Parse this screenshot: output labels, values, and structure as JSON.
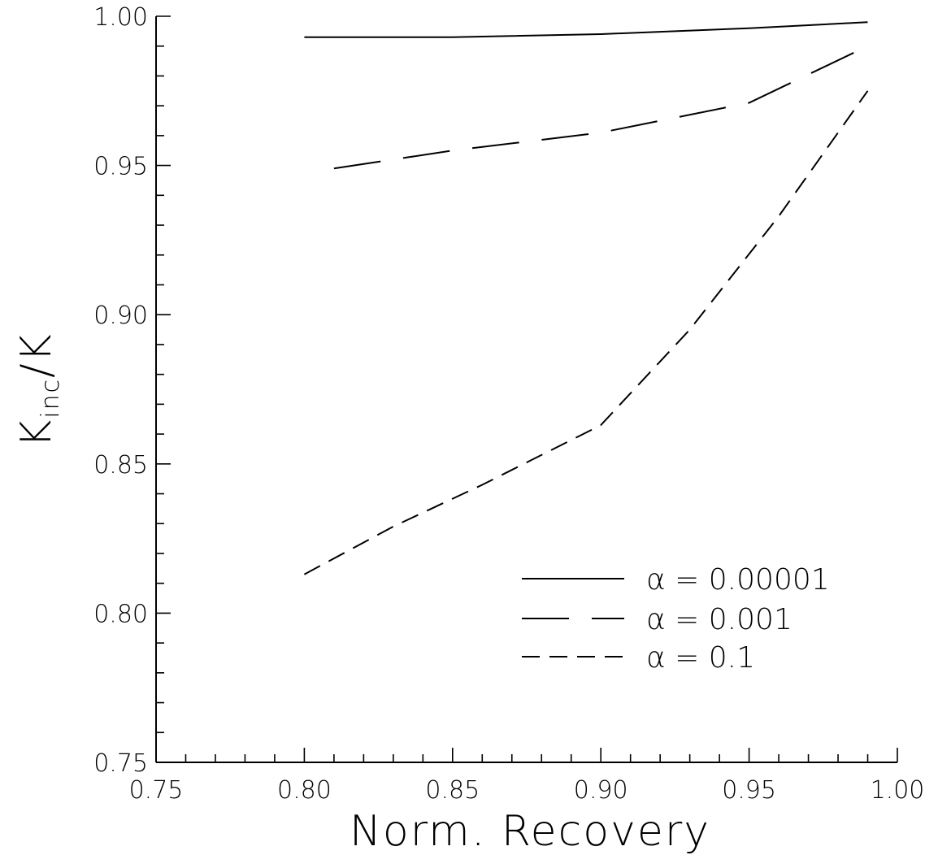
{
  "chart_data": {
    "type": "line",
    "xlabel": "Norm.  Recovery",
    "ylabel_main": "K",
    "ylabel_sub": "inc",
    "ylabel_tail": "/K",
    "xlim": [
      0.75,
      1.0
    ],
    "ylim": [
      0.75,
      1.0
    ],
    "x_ticks": [
      "0.75",
      "0.80",
      "0.85",
      "0.90",
      "0.95",
      "1.00"
    ],
    "y_ticks": [
      "0.75",
      "0.80",
      "0.85",
      "0.90",
      "0.95",
      "1.00"
    ],
    "legend_position": "lower-right",
    "series": [
      {
        "name": "α  =  0.00001",
        "style": "solid",
        "x": [
          0.8,
          0.85,
          0.9,
          0.95,
          0.99
        ],
        "y": [
          0.993,
          0.993,
          0.994,
          0.996,
          0.998
        ]
      },
      {
        "name": "α  =  0.001",
        "style": "long-dash",
        "x": [
          0.81,
          0.85,
          0.9,
          0.95,
          0.99
        ],
        "y": [
          0.949,
          0.955,
          0.961,
          0.971,
          0.99
        ]
      },
      {
        "name": "α  =  0.1",
        "style": "short-dash",
        "x": [
          0.8,
          0.83,
          0.86,
          0.9,
          0.93,
          0.96,
          0.99
        ],
        "y": [
          0.813,
          0.829,
          0.843,
          0.863,
          0.895,
          0.933,
          0.975
        ]
      }
    ]
  }
}
